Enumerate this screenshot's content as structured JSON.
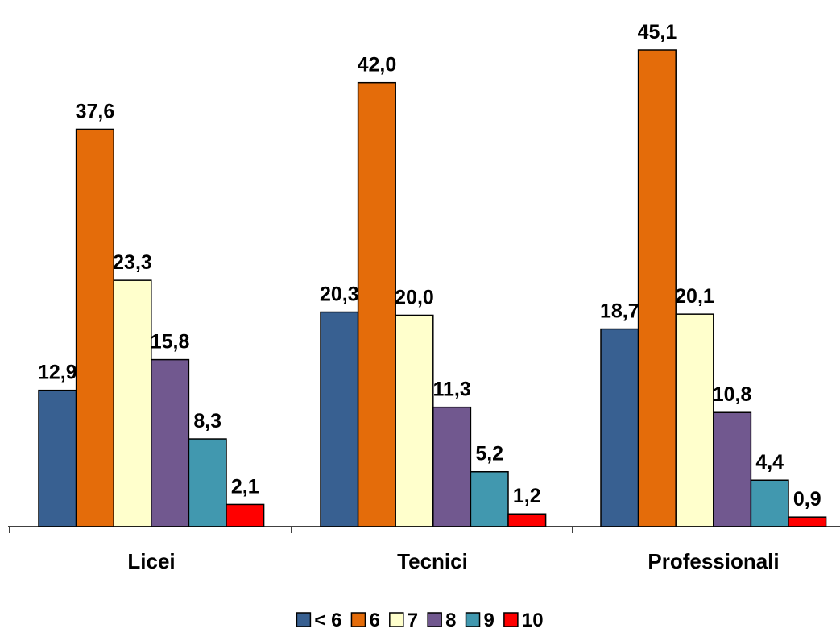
{
  "chart_data": {
    "type": "bar",
    "categories": [
      "Licei",
      "Tecnici",
      "Professionali"
    ],
    "series": [
      {
        "name": "< 6",
        "color": "#386091",
        "values": [
          12.9,
          20.3,
          18.7
        ]
      },
      {
        "name": "6",
        "color": "#E46C0A",
        "values": [
          37.6,
          42.0,
          45.1
        ]
      },
      {
        "name": "7",
        "color": "#FFFFCC",
        "values": [
          23.3,
          20.0,
          20.1
        ]
      },
      {
        "name": "8",
        "color": "#71588F",
        "values": [
          15.8,
          11.3,
          10.8
        ]
      },
      {
        "name": "9",
        "color": "#4198AF",
        "values": [
          8.3,
          5.2,
          4.4
        ]
      },
      {
        "name": "10",
        "color": "#FF0000",
        "values": [
          2.1,
          1.2,
          0.9
        ]
      }
    ],
    "data_labels": [
      [
        "12,9",
        "20,3",
        "18,7"
      ],
      [
        "37,6",
        "42,0",
        "45,1"
      ],
      [
        "23,3",
        "20,0",
        "20,1"
      ],
      [
        "15,8",
        "11,3",
        "10,8"
      ],
      [
        "8,3",
        "5,2",
        "4,4"
      ],
      [
        "2,1",
        "1,2",
        "0,9"
      ]
    ],
    "ylim": [
      0,
      45.1
    ],
    "grid": false,
    "legend_position": "bottom",
    "title": "",
    "xlabel": "",
    "ylabel": ""
  }
}
